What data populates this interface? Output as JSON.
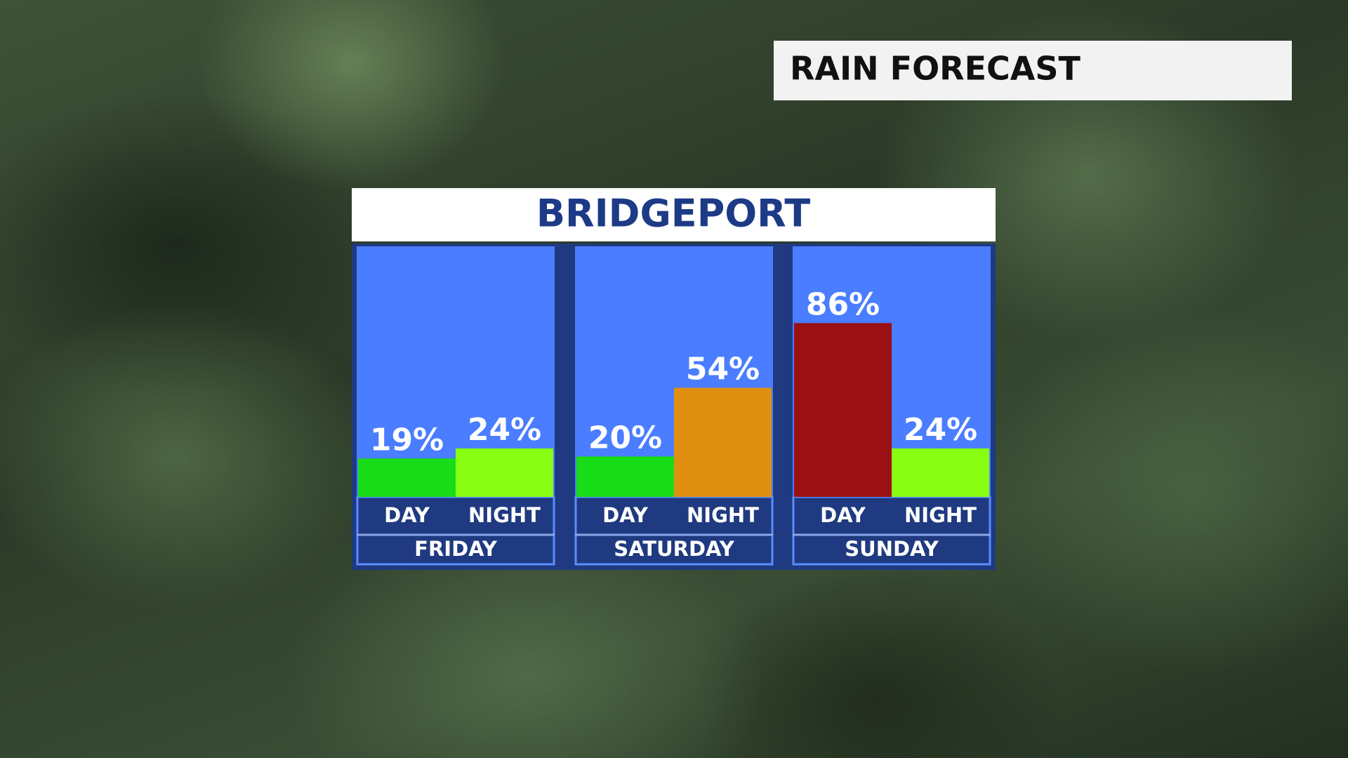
{
  "chart_data": {
    "type": "bar",
    "title": "RAIN FORECAST",
    "subtitle": "BRIDGEPORT",
    "groups": [
      {
        "name": "FRIDAY",
        "categories": [
          "DAY",
          "NIGHT"
        ],
        "values": [
          19,
          24
        ],
        "value_labels": [
          "19%",
          "24%"
        ],
        "colors": [
          "#18dc18",
          "#88ff12"
        ]
      },
      {
        "name": "SATURDAY",
        "categories": [
          "DAY",
          "NIGHT"
        ],
        "values": [
          20,
          54
        ],
        "value_labels": [
          "20%",
          "54%"
        ],
        "colors": [
          "#18dc18",
          "#e09010"
        ]
      },
      {
        "name": "SUNDAY",
        "categories": [
          "DAY",
          "NIGHT"
        ],
        "values": [
          86,
          24
        ],
        "value_labels": [
          "86%",
          "24%"
        ],
        "colors": [
          "#9a1014",
          "#88ff12"
        ]
      }
    ]
  }
}
